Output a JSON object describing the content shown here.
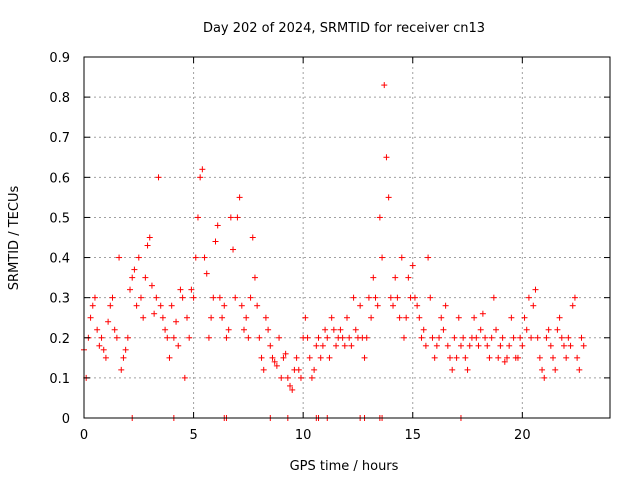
{
  "chart_data": {
    "type": "scatter",
    "title": "Day 202 of 2024, SRMTID for receiver cn13",
    "xlabel": "GPS time / hours",
    "ylabel": "SRMTID / TECUs",
    "xlim": [
      0,
      24
    ],
    "ylim": [
      0,
      0.9
    ],
    "x_ticks": [
      0,
      5,
      10,
      15,
      20
    ],
    "x_tick_labels": [
      "0",
      "5",
      "10",
      "15",
      "20"
    ],
    "y_ticks": [
      0,
      0.1,
      0.2,
      0.3,
      0.4,
      0.5,
      0.6,
      0.7,
      0.8,
      0.9
    ],
    "y_tick_labels": [
      "0",
      "0.1",
      "0.2",
      "0.3",
      "0.4",
      "0.5",
      "0.6",
      "0.7",
      "0.8",
      "0.9"
    ],
    "grid": true,
    "marker": "+",
    "color": "#ff0000",
    "series": [
      {
        "name": "SRMTID",
        "x": [
          0.0,
          0.1,
          0.2,
          0.3,
          0.4,
          0.5,
          0.6,
          0.7,
          0.8,
          0.9,
          1.0,
          1.1,
          1.2,
          1.3,
          1.4,
          1.5,
          1.6,
          1.7,
          1.8,
          1.9,
          2.0,
          2.1,
          2.2,
          2.3,
          2.4,
          2.5,
          2.6,
          2.7,
          2.8,
          2.9,
          3.0,
          3.1,
          3.2,
          3.3,
          3.4,
          3.5,
          3.6,
          3.7,
          3.8,
          3.9,
          4.0,
          4.1,
          4.2,
          4.3,
          4.4,
          4.5,
          4.6,
          4.7,
          4.8,
          4.9,
          5.0,
          5.1,
          5.2,
          5.3,
          5.4,
          5.5,
          5.6,
          5.7,
          5.8,
          5.9,
          6.0,
          6.1,
          6.2,
          6.3,
          6.4,
          6.5,
          6.6,
          6.7,
          6.8,
          6.9,
          7.0,
          7.1,
          7.2,
          7.3,
          7.4,
          7.5,
          7.6,
          7.7,
          7.8,
          7.9,
          8.0,
          8.1,
          8.2,
          8.3,
          8.4,
          8.5,
          8.6,
          8.7,
          8.8,
          8.9,
          9.0,
          9.1,
          9.2,
          9.3,
          9.4,
          9.5,
          9.6,
          9.7,
          9.8,
          9.9,
          10.0,
          10.1,
          10.2,
          10.3,
          10.4,
          10.5,
          10.6,
          10.7,
          10.8,
          10.9,
          11.0,
          11.1,
          11.2,
          11.3,
          11.4,
          11.5,
          11.6,
          11.7,
          11.8,
          11.9,
          12.0,
          12.1,
          12.2,
          12.3,
          12.4,
          12.5,
          12.6,
          12.7,
          12.8,
          12.9,
          13.0,
          13.1,
          13.2,
          13.3,
          13.4,
          13.5,
          13.6,
          13.7,
          13.8,
          13.9,
          14.0,
          14.1,
          14.2,
          14.3,
          14.4,
          14.5,
          14.6,
          14.7,
          14.8,
          14.9,
          15.0,
          15.1,
          15.2,
          15.3,
          15.4,
          15.5,
          15.6,
          15.7,
          15.8,
          15.9,
          16.0,
          16.1,
          16.2,
          16.3,
          16.4,
          16.5,
          16.6,
          16.7,
          16.8,
          16.9,
          17.0,
          17.1,
          17.2,
          17.3,
          17.4,
          17.5,
          17.6,
          17.7,
          17.8,
          17.9,
          18.0,
          18.1,
          18.2,
          18.3,
          18.4,
          18.5,
          18.6,
          18.7,
          18.8,
          18.9,
          19.0,
          19.1,
          19.2,
          19.3,
          19.4,
          19.5,
          19.6,
          19.7,
          19.8,
          19.9,
          20.0,
          20.1,
          20.2,
          20.3,
          20.4,
          20.5,
          20.6,
          20.7,
          20.8,
          20.9,
          21.0,
          21.1,
          21.2,
          21.3,
          21.4,
          21.5,
          21.6,
          21.7,
          21.8,
          21.9,
          22.0,
          22.1,
          22.2,
          22.3,
          22.4,
          22.5,
          22.6,
          22.7,
          22.8
        ],
        "y": [
          0.17,
          0.1,
          0.2,
          0.25,
          0.28,
          0.3,
          0.22,
          0.18,
          0.2,
          0.17,
          0.15,
          0.24,
          0.28,
          0.3,
          0.22,
          0.2,
          0.4,
          0.12,
          0.15,
          0.17,
          0.2,
          0.32,
          0.35,
          0.37,
          0.28,
          0.4,
          0.3,
          0.25,
          0.35,
          0.43,
          0.45,
          0.33,
          0.26,
          0.3,
          0.6,
          0.28,
          0.25,
          0.22,
          0.2,
          0.15,
          0.28,
          0.2,
          0.24,
          0.18,
          0.32,
          0.3,
          0.1,
          0.25,
          0.2,
          0.32,
          0.3,
          0.4,
          0.5,
          0.6,
          0.62,
          0.4,
          0.36,
          0.2,
          0.25,
          0.3,
          0.44,
          0.48,
          0.3,
          0.25,
          0.28,
          0.2,
          0.22,
          0.5,
          0.42,
          0.3,
          0.5,
          0.55,
          0.28,
          0.22,
          0.25,
          0.2,
          0.3,
          0.45,
          0.35,
          0.28,
          0.2,
          0.15,
          0.12,
          0.25,
          0.22,
          0.18,
          0.15,
          0.14,
          0.13,
          0.2,
          0.1,
          0.15,
          0.16,
          0.1,
          0.08,
          0.07,
          0.12,
          0.15,
          0.12,
          0.1,
          0.2,
          0.25,
          0.2,
          0.15,
          0.1,
          0.12,
          0.18,
          0.2,
          0.15,
          0.18,
          0.22,
          0.2,
          0.15,
          0.25,
          0.22,
          0.18,
          0.2,
          0.22,
          0.2,
          0.18,
          0.25,
          0.2,
          0.18,
          0.3,
          0.22,
          0.2,
          0.28,
          0.2,
          0.15,
          0.2,
          0.3,
          0.25,
          0.35,
          0.3,
          0.28,
          0.5,
          0.4,
          0.83,
          0.65,
          0.55,
          0.3,
          0.28,
          0.35,
          0.3,
          0.25,
          0.4,
          0.2,
          0.25,
          0.35,
          0.3,
          0.38,
          0.3,
          0.28,
          0.25,
          0.2,
          0.22,
          0.18,
          0.4,
          0.3,
          0.2,
          0.15,
          0.18,
          0.2,
          0.25,
          0.22,
          0.28,
          0.18,
          0.15,
          0.12,
          0.2,
          0.15,
          0.25,
          0.18,
          0.2,
          0.15,
          0.12,
          0.18,
          0.2,
          0.25,
          0.2,
          0.18,
          0.22,
          0.26,
          0.2,
          0.18,
          0.15,
          0.2,
          0.3,
          0.22,
          0.15,
          0.18,
          0.2,
          0.14,
          0.15,
          0.18,
          0.25,
          0.2,
          0.15,
          0.15,
          0.2,
          0.18,
          0.25,
          0.22,
          0.3,
          0.2,
          0.28,
          0.32,
          0.2,
          0.15,
          0.12,
          0.1,
          0.2,
          0.22,
          0.18,
          0.15,
          0.12,
          0.22,
          0.25,
          0.2,
          0.18,
          0.15,
          0.2,
          0.18,
          0.28,
          0.3,
          0.15,
          0.12,
          0.2,
          0.18
        ],
        "zero_points_x": [
          2.2,
          4.1,
          6.4,
          6.5,
          8.5,
          9.3,
          10.6,
          10.7,
          11.1,
          12.6,
          12.8,
          13.5,
          13.6,
          17.2
        ]
      }
    ]
  }
}
